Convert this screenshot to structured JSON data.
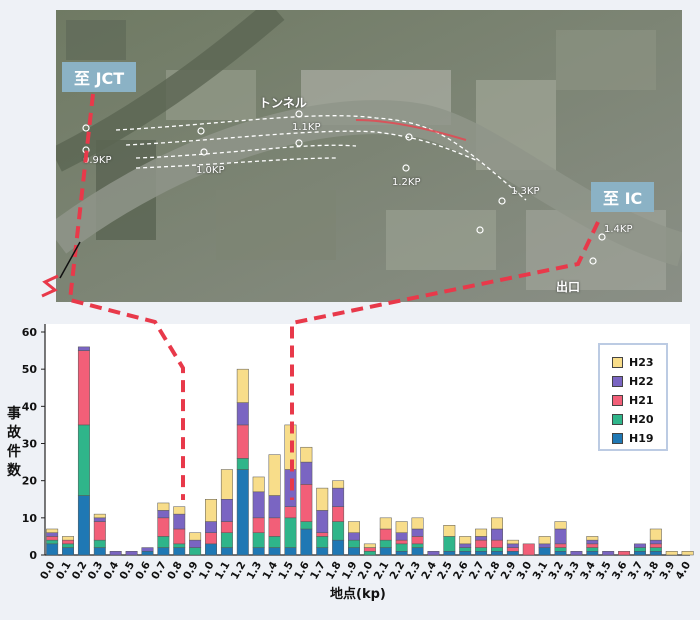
{
  "map": {
    "label_jct": "至 JCT",
    "label_ic": "至 IC",
    "tunnel": "トンネル",
    "exit": "出口",
    "kp_labels": [
      "0.9KP",
      "1.0KP",
      "1.1KP",
      "1.2KP",
      "1.3KP",
      "1.4KP"
    ]
  },
  "chart_data": {
    "type": "bar",
    "stacked": true,
    "ylabel": "事故件数",
    "xlabel": "地点(kp)",
    "ylim": [
      0,
      60
    ],
    "yticks": [
      0,
      10,
      20,
      30,
      40,
      50,
      60
    ],
    "categories": [
      "0.0",
      "0.1",
      "0.2",
      "0.3",
      "0.4",
      "0.5",
      "0.6",
      "0.7",
      "0.8",
      "0.9",
      "1.0",
      "1.1",
      "1.2",
      "1.3",
      "1.4",
      "1.5",
      "1.6",
      "1.7",
      "1.8",
      "1.9",
      "2.0",
      "2.1",
      "2.2",
      "2.3",
      "2.4",
      "2.5",
      "2.6",
      "2.7",
      "2.8",
      "2.9",
      "3.0",
      "3.1",
      "3.2",
      "3.3",
      "3.4",
      "3.5",
      "3.6",
      "3.7",
      "3.8",
      "3.9",
      "4.0"
    ],
    "legend_position": "top-right",
    "series": [
      {
        "name": "H19",
        "color": "#1f78b4",
        "values": [
          3,
          2,
          16,
          2,
          0,
          0,
          1,
          2,
          2,
          0,
          3,
          2,
          23,
          2,
          2,
          2,
          7,
          2,
          4,
          2,
          0,
          2,
          1,
          2,
          0,
          1,
          1,
          1,
          1,
          1,
          0,
          2,
          1,
          0,
          1,
          0,
          0,
          1,
          1,
          0,
          0
        ]
      },
      {
        "name": "H20",
        "color": "#2fb58a",
        "values": [
          1,
          1,
          19,
          2,
          0,
          0,
          0,
          3,
          1,
          2,
          0,
          4,
          3,
          4,
          3,
          8,
          2,
          3,
          5,
          2,
          1,
          2,
          2,
          1,
          0,
          4,
          1,
          1,
          1,
          0,
          0,
          0,
          1,
          0,
          1,
          0,
          0,
          1,
          1,
          0,
          0
        ]
      },
      {
        "name": "H21",
        "color": "#f25f78",
        "values": [
          1,
          1,
          20,
          5,
          0,
          0,
          0,
          5,
          4,
          0,
          3,
          3,
          9,
          4,
          5,
          3,
          10,
          1,
          4,
          0,
          1,
          3,
          1,
          2,
          0,
          0,
          0,
          2,
          2,
          1,
          3,
          0,
          1,
          0,
          1,
          0,
          1,
          0,
          1,
          0,
          0
        ]
      },
      {
        "name": "H22",
        "color": "#7a65c2",
        "values": [
          1,
          0,
          1,
          1,
          1,
          1,
          1,
          2,
          4,
          2,
          3,
          6,
          6,
          7,
          6,
          10,
          6,
          6,
          5,
          2,
          0,
          0,
          2,
          2,
          1,
          0,
          1,
          1,
          3,
          1,
          0,
          1,
          4,
          1,
          1,
          1,
          0,
          1,
          1,
          0,
          0
        ]
      },
      {
        "name": "H23",
        "color": "#f8dd8a",
        "values": [
          1,
          1,
          0,
          1,
          0,
          0,
          0,
          2,
          2,
          2,
          6,
          8,
          9,
          4,
          11,
          12,
          4,
          6,
          2,
          3,
          1,
          3,
          3,
          3,
          0,
          3,
          2,
          2,
          3,
          1,
          0,
          2,
          2,
          0,
          1,
          0,
          0,
          0,
          3,
          1,
          1
        ]
      }
    ]
  }
}
